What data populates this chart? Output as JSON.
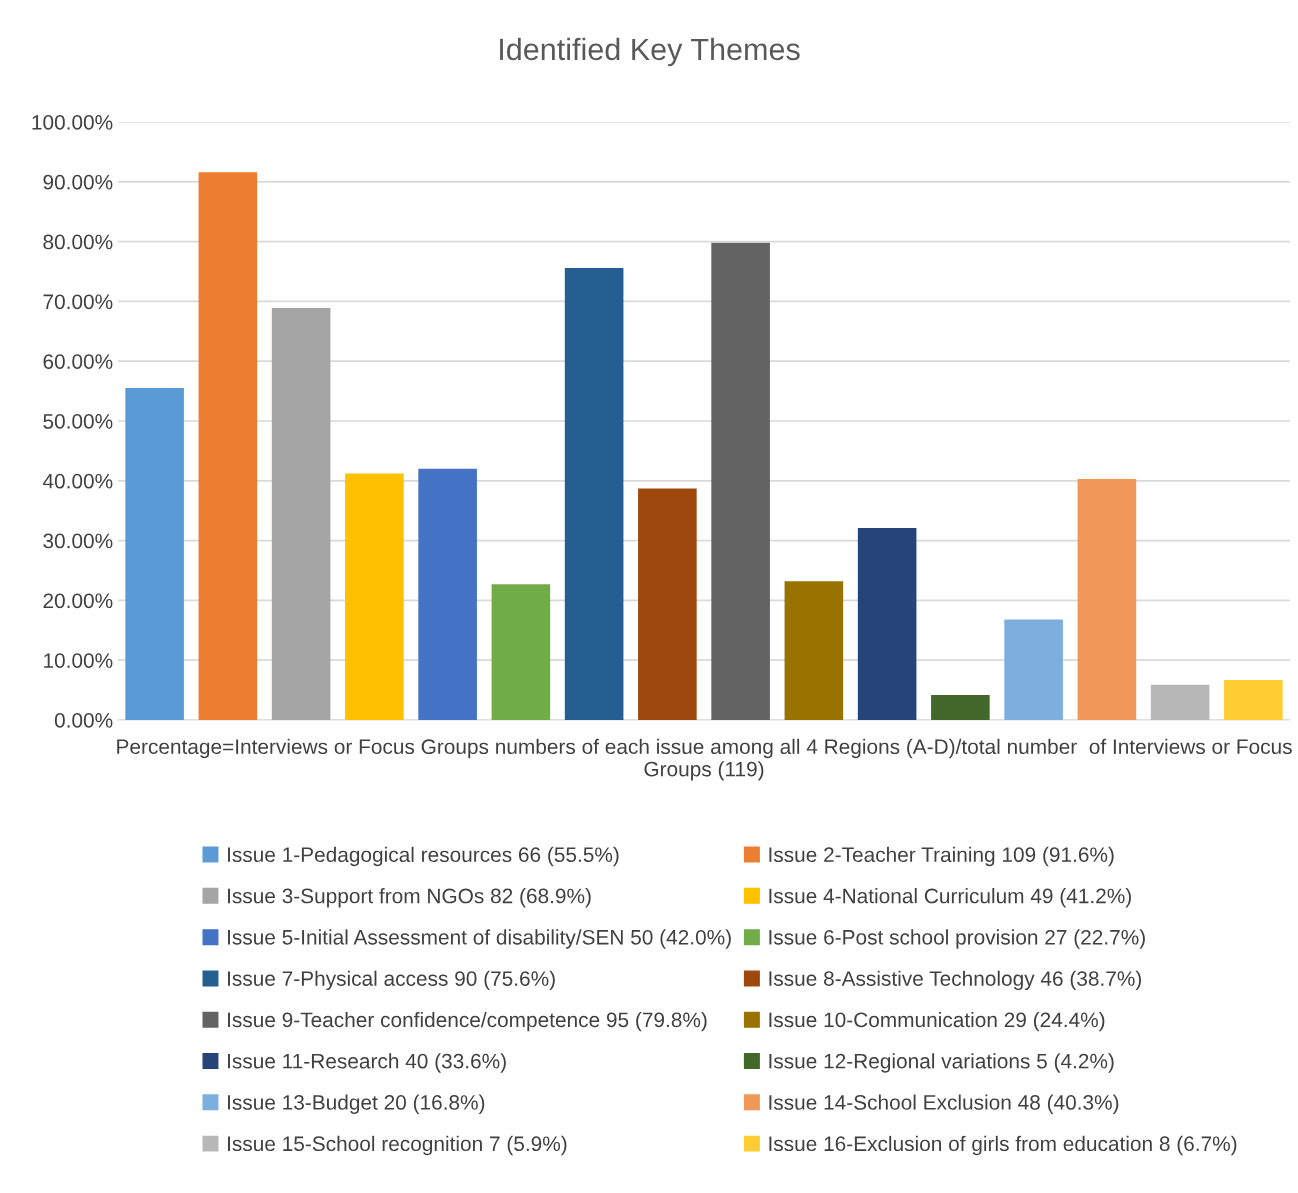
{
  "chart_data": {
    "type": "bar",
    "title": "Identified Key Themes",
    "xlabel": "Percentage=Interviews or Focus Groups numbers of each issue among all 4 Regions (A-D)/total number  of Interviews or Focus Groups (119)",
    "categories": [
      null,
      null,
      null,
      null,
      null,
      null,
      null,
      null,
      null,
      null,
      null,
      null,
      null,
      null,
      null,
      null
    ],
    "series": [
      {
        "name": "Issue 1-Pedagogical resources 66 (55.5%)",
        "color": "#5b9bd5",
        "values": [
          55.5,
          null,
          null,
          null,
          null,
          null,
          null,
          null,
          null,
          null,
          null,
          null,
          null,
          null,
          null,
          null
        ]
      },
      {
        "name": "Issue 2-Teacher Training 109 (91.6%)",
        "color": "#ed7d31",
        "values": [
          null,
          91.6,
          null,
          null,
          null,
          null,
          null,
          null,
          null,
          null,
          null,
          null,
          null,
          null,
          null,
          null
        ]
      },
      {
        "name": "Issue 3-Support from NGOs 82 (68.9%)",
        "color": "#a5a5a5",
        "values": [
          null,
          null,
          68.9,
          null,
          null,
          null,
          null,
          null,
          null,
          null,
          null,
          null,
          null,
          null,
          null,
          null
        ]
      },
      {
        "name": "Issue 4-National Curriculum 49 (41.2%)",
        "color": "#ffc000",
        "values": [
          null,
          null,
          null,
          41.2,
          null,
          null,
          null,
          null,
          null,
          null,
          null,
          null,
          null,
          null,
          null,
          null
        ]
      },
      {
        "name": "Issue 5-Initial Assessment of disability/SEN 50 (42.0%)",
        "color": "#4472c4",
        "values": [
          null,
          null,
          null,
          null,
          42.0,
          null,
          null,
          null,
          null,
          null,
          null,
          null,
          null,
          null,
          null,
          null
        ]
      },
      {
        "name": "Issue 6-Post school provision 27 (22.7%)",
        "color": "#70ad47",
        "values": [
          null,
          null,
          null,
          null,
          null,
          22.7,
          null,
          null,
          null,
          null,
          null,
          null,
          null,
          null,
          null,
          null
        ]
      },
      {
        "name": "Issue 7-Physical access 90 (75.6%)",
        "color": "#255e91",
        "values": [
          null,
          null,
          null,
          null,
          null,
          null,
          75.6,
          null,
          null,
          null,
          null,
          null,
          null,
          null,
          null,
          null
        ]
      },
      {
        "name": "Issue 8-Assistive Technology 46 (38.7%)",
        "color": "#9e480e",
        "values": [
          null,
          null,
          null,
          null,
          null,
          null,
          null,
          38.7,
          null,
          null,
          null,
          null,
          null,
          null,
          null,
          null
        ]
      },
      {
        "name": "Issue 9-Teacher confidence/competence 95 (79.8%)",
        "color": "#636363",
        "values": [
          null,
          null,
          null,
          null,
          null,
          null,
          null,
          null,
          79.8,
          null,
          null,
          null,
          null,
          null,
          null,
          null
        ]
      },
      {
        "name": "Issue 10-Communication 29 (24.4%)",
        "color": "#997300",
        "values": [
          null,
          null,
          null,
          null,
          null,
          null,
          null,
          null,
          null,
          23.2,
          null,
          null,
          null,
          null,
          null,
          null
        ]
      },
      {
        "name": "Issue 11-Research 40 (33.6%)",
        "color": "#264478",
        "values": [
          null,
          null,
          null,
          null,
          null,
          null,
          null,
          null,
          null,
          null,
          32.1,
          null,
          null,
          null,
          null,
          null
        ]
      },
      {
        "name": "Issue 12-Regional variations 5 (4.2%)",
        "color": "#43682b",
        "values": [
          null,
          null,
          null,
          null,
          null,
          null,
          null,
          null,
          null,
          null,
          null,
          4.2,
          null,
          null,
          null,
          null
        ]
      },
      {
        "name": "Issue 13-Budget 20 (16.8%)",
        "color": "#7cafdd",
        "values": [
          null,
          null,
          null,
          null,
          null,
          null,
          null,
          null,
          null,
          null,
          null,
          null,
          16.8,
          null,
          null,
          null
        ]
      },
      {
        "name": "Issue 14-School Exclusion 48 (40.3%)",
        "color": "#f1975a",
        "values": [
          null,
          null,
          null,
          null,
          null,
          null,
          null,
          null,
          null,
          null,
          null,
          null,
          null,
          40.3,
          null,
          null
        ]
      },
      {
        "name": "Issue 15-School recognition 7 (5.9%)",
        "color": "#b7b7b7",
        "values": [
          null,
          null,
          null,
          null,
          null,
          null,
          null,
          null,
          null,
          null,
          null,
          null,
          null,
          null,
          5.9,
          null
        ]
      },
      {
        "name": "Issue 16-Exclusion of girls from education 8 (6.7%)",
        "color": "#ffcd33",
        "values": [
          null,
          null,
          null,
          null,
          null,
          null,
          null,
          null,
          null,
          null,
          null,
          null,
          null,
          null,
          null,
          6.7
        ]
      }
    ],
    "ylim": [
      0,
      100
    ],
    "yticks": [
      {
        "value": 0,
        "label": "0.00%"
      },
      {
        "value": 10,
        "label": "10.00%"
      },
      {
        "value": 20,
        "label": "20.00%"
      },
      {
        "value": 30,
        "label": "30.00%"
      },
      {
        "value": 40,
        "label": "40.00%"
      },
      {
        "value": 50,
        "label": "50.00%"
      },
      {
        "value": 60,
        "label": "60.00%"
      },
      {
        "value": 70,
        "label": "70.00%"
      },
      {
        "value": 80,
        "label": "80.00%"
      },
      {
        "value": 90,
        "label": "90.00%"
      },
      {
        "value": 100,
        "label": "100.00%"
      }
    ],
    "grid": "y",
    "legend": "bottom"
  }
}
